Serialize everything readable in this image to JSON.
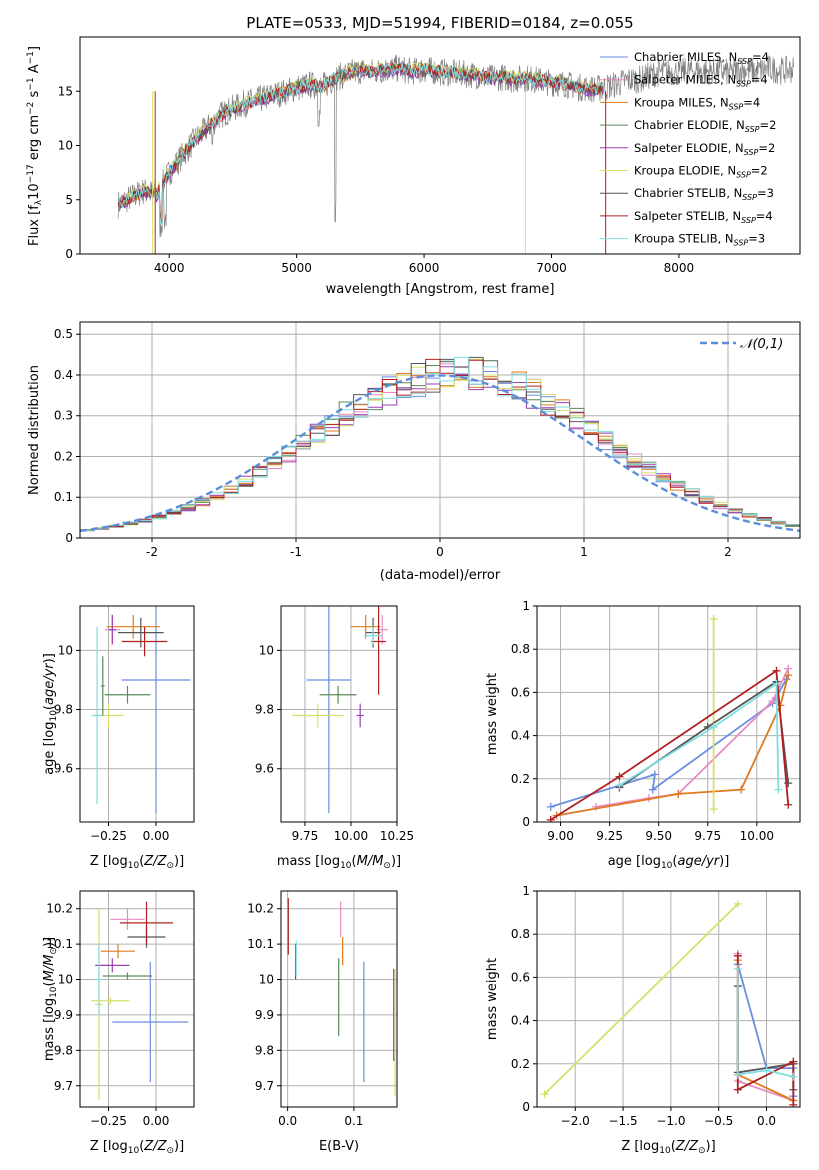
{
  "figure_title": "PLATE=0533, MJD=51994, FIBERID=0184, z=0.055",
  "palette": [
    {
      "key": "c_miles",
      "color": "#6a8ee0"
    },
    {
      "key": "s_miles",
      "color": "#e88bc4"
    },
    {
      "key": "k_miles",
      "color": "#e07a1f"
    },
    {
      "key": "c_elodie",
      "color": "#5a8a5a"
    },
    {
      "key": "s_elodie",
      "color": "#9b3fb0"
    },
    {
      "key": "k_elodie",
      "color": "#d6e06a"
    },
    {
      "key": "c_stelib",
      "color": "#555555"
    },
    {
      "key": "s_stelib",
      "color": "#b02020"
    },
    {
      "key": "k_stelib",
      "color": "#80dde0"
    }
  ],
  "grid_color": "#b0b0b0",
  "chart_data": [
    {
      "id": "spectrum",
      "type": "line",
      "xlabel": "wavelength [Angstrom, rest frame]",
      "ylabel": "Flux [f_λ10^-17 erg cm^-2 s^-1 A^-1]",
      "xlim": [
        3300,
        8950
      ],
      "ylim": [
        0,
        20
      ],
      "xticks": [
        4000,
        5000,
        6000,
        7000,
        8000
      ],
      "yticks": [
        0,
        5,
        10,
        15
      ],
      "grid": false,
      "legend_position": "top-right",
      "data_color": "#808080",
      "continuum_x": [
        3600,
        3700,
        3800,
        3900,
        4000,
        4100,
        4200,
        4300,
        4400,
        4500,
        4600,
        4700,
        4800,
        4900,
        5000,
        5100,
        5200,
        5300,
        5400,
        5500,
        5600,
        5700,
        5800,
        5900,
        6000,
        6100,
        6200,
        6300,
        6400,
        6500,
        6600,
        6700,
        6800,
        6900,
        7000,
        7100,
        7200,
        7300,
        7400,
        7500,
        7600,
        7700,
        7800,
        7900,
        8000,
        8100,
        8200,
        8300,
        8400,
        8500,
        8600,
        8700,
        8800,
        8900
      ],
      "continuum_y": [
        4.6,
        5.2,
        5.8,
        5.5,
        7.5,
        9.0,
        10.5,
        11.6,
        12.8,
        13.4,
        13.9,
        14.2,
        14.6,
        14.9,
        15.3,
        15.6,
        15.4,
        16.2,
        16.6,
        16.9,
        16.8,
        17.0,
        17.1,
        16.8,
        17.0,
        16.8,
        16.7,
        16.6,
        16.5,
        16.2,
        16.3,
        16.1,
        16.2,
        16.0,
        15.8,
        15.7,
        15.4,
        15.2,
        15.3,
        15.6,
        16.0,
        16.1,
        16.6,
        16.8,
        16.7,
        16.9,
        16.8,
        16.9,
        16.7,
        17.0,
        16.8,
        17.1,
        16.9,
        17.0
      ],
      "model_range": [
        3600,
        7400
      ],
      "series": [
        {
          "name": "Chabrier MILES, N_SSP=4",
          "key": "c_miles",
          "offset": 0.0
        },
        {
          "name": "Salpeter MILES, N_SSP=4",
          "key": "s_miles",
          "offset": 0.1
        },
        {
          "name": "Kroupa MILES, N_SSP=4",
          "key": "k_miles",
          "offset": -0.1
        },
        {
          "name": "Chabrier ELODIE, N_SSP=2",
          "key": "c_elodie",
          "offset": 0.15
        },
        {
          "name": "Salpeter ELODIE, N_SSP=2",
          "key": "s_elodie",
          "offset": -0.15
        },
        {
          "name": "Kroupa ELODIE, N_SSP=2",
          "key": "k_elodie",
          "offset": 0.2
        },
        {
          "name": "Chabrier STELIB, N_SSP=3",
          "key": "c_stelib",
          "offset": -0.05
        },
        {
          "name": "Salpeter STELIB, N_SSP=4",
          "key": "s_stelib",
          "offset": 0.05
        },
        {
          "name": "Kroupa STELIB, N_SSP=3",
          "key": "k_stelib",
          "offset": 0.0
        }
      ]
    },
    {
      "id": "residuals",
      "type": "line",
      "xlabel": "(data-model)/error",
      "ylabel": "Normed distribution",
      "xlim": [
        -2.5,
        2.5
      ],
      "ylim": [
        0,
        0.53
      ],
      "xticks": [
        -2,
        -1,
        0,
        1,
        2
      ],
      "yticks": [
        0.0,
        0.1,
        0.2,
        0.3,
        0.4,
        0.5
      ],
      "grid": true,
      "legend_position": "top-right",
      "reference": {
        "name": "𝒩(0,1)",
        "mean": 0,
        "sigma": 1,
        "color": "#5a8ed8"
      },
      "bin_width": 0.1,
      "bin_start": -2.5
    },
    {
      "id": "age_vs_Z",
      "type": "scatter",
      "xlabel": "Z [log10(Z/Z⊙)]",
      "ylabel": "age  [log10(age/yr)]",
      "xlim": [
        -0.4,
        0.2
      ],
      "ylim": [
        9.42,
        10.15
      ],
      "xticks": [
        -0.25,
        0.0
      ],
      "xticklabels": [
        "−0.25",
        "0.00"
      ],
      "yticks": [
        9.6,
        9.8,
        10.0
      ],
      "grid": true,
      "points": [
        {
          "key": "c_miles",
          "x": 0.0,
          "y": 9.9,
          "xerr": 0.18,
          "yerr": 0.45
        },
        {
          "key": "s_miles",
          "x": -0.23,
          "y": 10.07,
          "xerr": 0.04,
          "yerr": 0.05
        },
        {
          "key": "k_miles",
          "x": -0.12,
          "y": 10.08,
          "xerr": 0.14,
          "yerr": 0.04
        },
        {
          "key": "c_elodie",
          "x": -0.15,
          "y": 9.85,
          "xerr": 0.12,
          "yerr": 0.03
        },
        {
          "key": "s_elodie",
          "x": -0.23,
          "y": 10.07,
          "xerr": 0.02,
          "yerr": 0.05
        },
        {
          "key": "k_elodie",
          "x": -0.25,
          "y": 9.78,
          "xerr": 0.08,
          "yerr": 0.04
        },
        {
          "key": "c_stelib",
          "x": -0.08,
          "y": 10.06,
          "xerr": 0.12,
          "yerr": 0.05
        },
        {
          "key": "s_stelib",
          "x": -0.06,
          "y": 10.03,
          "xerr": 0.12,
          "yerr": 0.05
        },
        {
          "key": "k_stelib",
          "x": -0.31,
          "y": 9.78,
          "xerr": 0.03,
          "yerr": 0.3
        },
        {
          "key": "c_elodie",
          "x": -0.28,
          "y": 9.88,
          "xerr": 0.01,
          "yerr": 0.1
        }
      ]
    },
    {
      "id": "age_vs_mass",
      "type": "scatter",
      "xlabel": "mass [log10(M/M⊙)]",
      "ylabel": "",
      "xlim": [
        9.62,
        10.25
      ],
      "ylim": [
        9.42,
        10.15
      ],
      "xticks": [
        9.75,
        10.0,
        10.25
      ],
      "xticklabels": [
        "9.75",
        "10.00",
        "10.25"
      ],
      "yticks": [
        9.6,
        9.8,
        10.0
      ],
      "grid": true,
      "points": [
        {
          "key": "c_miles",
          "x": 9.88,
          "y": 9.9,
          "xerr": 0.12,
          "yerr": 0.45
        },
        {
          "key": "s_miles",
          "x": 10.17,
          "y": 10.07,
          "xerr": 0.03,
          "yerr": 0.05
        },
        {
          "key": "k_miles",
          "x": 10.08,
          "y": 10.08,
          "xerr": 0.08,
          "yerr": 0.04
        },
        {
          "key": "c_elodie",
          "x": 9.93,
          "y": 9.85,
          "xerr": 0.1,
          "yerr": 0.03
        },
        {
          "key": "s_elodie",
          "x": 10.05,
          "y": 9.78,
          "xerr": 0.02,
          "yerr": 0.04
        },
        {
          "key": "k_elodie",
          "x": 9.82,
          "y": 9.78,
          "xerr": 0.14,
          "yerr": 0.04
        },
        {
          "key": "c_stelib",
          "x": 10.12,
          "y": 10.06,
          "xerr": 0.04,
          "yerr": 0.05
        },
        {
          "key": "s_stelib",
          "x": 10.15,
          "y": 10.03,
          "xerr": 0.04,
          "yerr": 0.18
        },
        {
          "key": "k_stelib",
          "x": 10.12,
          "y": 10.05,
          "xerr": 0.05,
          "yerr": 0.03
        }
      ]
    },
    {
      "id": "weight_vs_age",
      "type": "line",
      "xlabel": "age  [log10(age/yr)]",
      "ylabel": "mass weight",
      "xlim": [
        8.88,
        10.22
      ],
      "ylim": [
        0,
        1
      ],
      "xticks": [
        9.0,
        9.25,
        9.5,
        9.75,
        10.0
      ],
      "xticklabels": [
        "9.00",
        "9.25",
        "9.50",
        "9.75",
        "10.00"
      ],
      "yticks": [
        0.0,
        0.2,
        0.4,
        0.6,
        0.8,
        1.0
      ],
      "grid": true,
      "series": [
        {
          "key": "c_miles",
          "x": [
            8.95,
            9.48,
            9.47,
            10.08,
            10.15
          ],
          "y": [
            0.07,
            0.22,
            0.15,
            0.55,
            0.66
          ]
        },
        {
          "key": "s_miles",
          "x": [
            9.18,
            9.45,
            9.6,
            10.08,
            10.16
          ],
          "y": [
            0.07,
            0.11,
            0.13,
            0.56,
            0.71
          ]
        },
        {
          "key": "k_miles",
          "x": [
            8.98,
            9.6,
            9.92,
            10.12,
            10.16
          ],
          "y": [
            0.03,
            0.13,
            0.15,
            0.54,
            0.68
          ]
        },
        {
          "key": "k_elodie",
          "x": [
            9.78,
            9.78
          ],
          "y": [
            0.06,
            0.94
          ]
        },
        {
          "key": "c_stelib",
          "x": [
            9.3,
            9.75,
            10.1,
            10.16
          ],
          "y": [
            0.16,
            0.44,
            0.65,
            0.18
          ]
        },
        {
          "key": "s_stelib",
          "x": [
            8.95,
            9.3,
            10.1,
            10.16
          ],
          "y": [
            0.01,
            0.21,
            0.7,
            0.08
          ]
        },
        {
          "key": "k_stelib",
          "x": [
            9.3,
            9.78,
            10.1,
            10.11
          ],
          "y": [
            0.17,
            0.44,
            0.64,
            0.15
          ]
        }
      ]
    },
    {
      "id": "mass_vs_Z",
      "type": "scatter",
      "xlabel": "Z [log10(Z/Z⊙)]",
      "ylabel": "mass [log10(M/M⊙)]",
      "xlim": [
        -0.4,
        0.2
      ],
      "ylim": [
        9.64,
        10.25
      ],
      "xticks": [
        -0.25,
        0.0
      ],
      "xticklabels": [
        "−0.25",
        "0.00"
      ],
      "yticks": [
        9.7,
        9.8,
        9.9,
        10.0,
        10.1,
        10.2
      ],
      "grid": true,
      "points": [
        {
          "key": "c_miles",
          "x": -0.03,
          "y": 9.88,
          "xerr": 0.2,
          "yerr": 0.17
        },
        {
          "key": "s_miles",
          "x": -0.15,
          "y": 10.17,
          "xerr": 0.09,
          "yerr": 0.03
        },
        {
          "key": "k_miles",
          "x": -0.2,
          "y": 10.08,
          "xerr": 0.09,
          "yerr": 0.02
        },
        {
          "key": "c_elodie",
          "x": -0.15,
          "y": 10.01,
          "xerr": 0.13,
          "yerr": 0.01
        },
        {
          "key": "s_elodie",
          "x": -0.23,
          "y": 10.04,
          "xerr": 0.09,
          "yerr": 0.02
        },
        {
          "key": "k_elodie",
          "x": -0.3,
          "y": 9.93,
          "xerr": 0.02,
          "yerr": 0.27
        },
        {
          "key": "c_stelib",
          "x": -0.05,
          "y": 10.12,
          "xerr": 0.1,
          "yerr": 0.03
        },
        {
          "key": "s_stelib",
          "x": -0.05,
          "y": 10.16,
          "xerr": 0.14,
          "yerr": 0.06
        },
        {
          "key": "k_stelib",
          "x": -0.3,
          "y": 10.0,
          "xerr": 0.02,
          "yerr": 0.1
        },
        {
          "key": "k_elodie",
          "x": -0.24,
          "y": 9.94,
          "xerr": 0.1,
          "yerr": 0.01
        }
      ]
    },
    {
      "id": "mass_vs_ebv",
      "type": "scatter",
      "xlabel": "E(B-V)",
      "ylabel": "",
      "xlim": [
        -0.01,
        0.165
      ],
      "ylim": [
        9.64,
        10.25
      ],
      "xticks": [
        0.0,
        0.1
      ],
      "xticklabels": [
        "0.0",
        "0.1"
      ],
      "yticks": [
        9.7,
        9.8,
        9.9,
        10.0,
        10.1,
        10.2
      ],
      "grid": true,
      "points": [
        {
          "key": "c_miles",
          "x": 0.115,
          "y": 9.88,
          "xerr": 0,
          "yerr": 0.17
        },
        {
          "key": "s_miles",
          "x": 0.08,
          "y": 10.17,
          "xerr": 0,
          "yerr": 0.05
        },
        {
          "key": "k_miles",
          "x": 0.083,
          "y": 10.08,
          "xerr": 0,
          "yerr": 0.04
        },
        {
          "key": "c_elodie",
          "x": 0.077,
          "y": 9.95,
          "xerr": 0,
          "yerr": 0.11
        },
        {
          "key": "s_elodie",
          "x": 0.16,
          "y": 9.9,
          "xerr": 0,
          "yerr": 0.13
        },
        {
          "key": "k_elodie",
          "x": 0.162,
          "y": 9.85,
          "xerr": 0,
          "yerr": 0.18
        },
        {
          "key": "c_stelib",
          "x": 0.012,
          "y": 10.05,
          "xerr": 0,
          "yerr": 0.05
        },
        {
          "key": "s_stelib",
          "x": 0.001,
          "y": 10.15,
          "xerr": 0,
          "yerr": 0.08
        },
        {
          "key": "k_stelib",
          "x": 0.013,
          "y": 10.06,
          "xerr": 0,
          "yerr": 0.05
        }
      ]
    },
    {
      "id": "weight_vs_Z",
      "type": "line",
      "xlabel": "Z [log10(Z/Z⊙)]",
      "ylabel": "mass weight",
      "xlim": [
        -2.4,
        0.35
      ],
      "ylim": [
        0,
        1
      ],
      "xticks": [
        -2.0,
        -1.5,
        -1.0,
        -0.5,
        0.0
      ],
      "xticklabels": [
        "−2.0",
        "−1.5",
        "−1.0",
        "−0.5",
        "0.0"
      ],
      "yticks": [
        0.0,
        0.2,
        0.4,
        0.6,
        0.8,
        1.0
      ],
      "grid": true,
      "series": [
        {
          "key": "k_elodie",
          "x": [
            -2.32,
            -0.3
          ],
          "y": [
            0.06,
            0.94
          ]
        },
        {
          "key": "c_miles",
          "x": [
            -0.3,
            0.0,
            0.28,
            0.28
          ],
          "y": [
            0.66,
            0.18,
            0.18,
            0.05
          ]
        },
        {
          "key": "s_miles",
          "x": [
            -0.3,
            -0.3,
            0.28
          ],
          "y": [
            0.71,
            0.12,
            0.03
          ]
        },
        {
          "key": "k_miles",
          "x": [
            -0.3,
            -0.3,
            0.28
          ],
          "y": [
            0.68,
            0.15,
            0.03
          ]
        },
        {
          "key": "c_stelib",
          "x": [
            -0.3,
            -0.3,
            0.28,
            0.28
          ],
          "y": [
            0.56,
            0.16,
            0.2,
            0.08
          ]
        },
        {
          "key": "s_stelib",
          "x": [
            -0.3,
            -0.3,
            0.28,
            0.28
          ],
          "y": [
            0.7,
            0.08,
            0.21,
            0.01
          ]
        },
        {
          "key": "k_stelib",
          "x": [
            -0.3,
            -0.3,
            0.0,
            0.28
          ],
          "y": [
            0.64,
            0.15,
            0.17,
            0.14
          ]
        }
      ]
    }
  ]
}
